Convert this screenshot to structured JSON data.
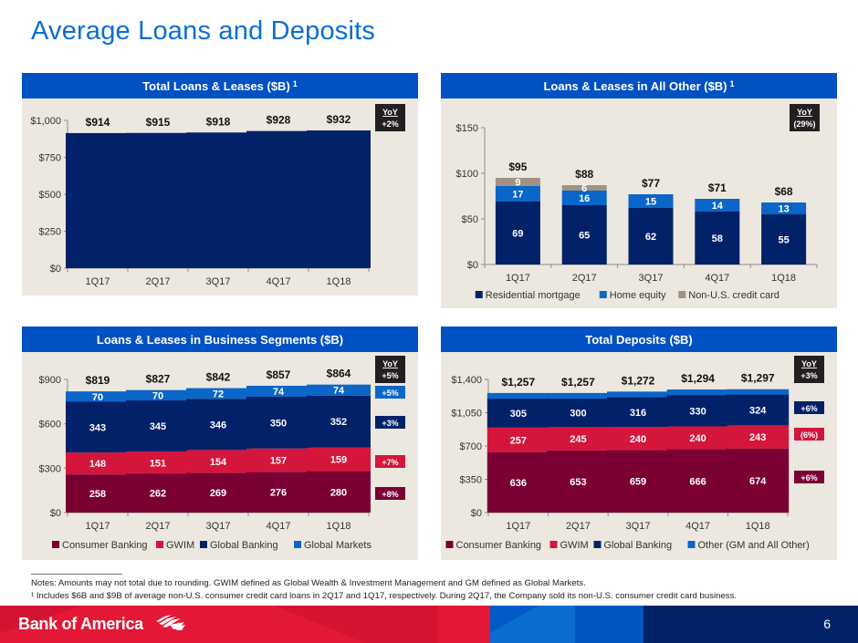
{
  "page": {
    "title": "Average Loans and Deposits",
    "page_number": "6",
    "brand": "Bank of America",
    "notes": [
      "Notes: Amounts may not total due to rounding. GWIM defined as Global Wealth & Investment Management and GM defined as Global Markets.",
      "¹ Includes $6B and $9B of average non-U.S. consumer credit card loans in 2Q17 and 1Q17, respectively. During 2Q17, the Company sold its non-U.S. consumer credit card business."
    ]
  },
  "colors": {
    "title_blue": "#0a6ed1",
    "header_blue": "#0051c3",
    "panel_bg": "#ece8df",
    "navy": "#012169",
    "light_blue": "#0a66c8",
    "taupe": "#a09385",
    "maroon": "#7a0033",
    "red": "#d4163c",
    "yoy_black": "#231f20",
    "footer_red": "#e31837"
  },
  "chart_data": [
    {
      "id": "total_loans",
      "type": "bar",
      "title": "Total Loans & Leases ($B)",
      "title_footnote": "1",
      "categories": [
        "1Q17",
        "2Q17",
        "3Q17",
        "4Q17",
        "1Q18"
      ],
      "series": [
        {
          "name": "Total Loans & Leases",
          "values": [
            914,
            915,
            918,
            928,
            932
          ],
          "color": "#012169"
        }
      ],
      "total_labels": [
        "$914",
        "$915",
        "$918",
        "$928",
        "$932"
      ],
      "ylim": [
        0,
        1000
      ],
      "yticks": [
        0,
        250,
        500,
        750,
        1000
      ],
      "ytick_labels": [
        "$0",
        "$250",
        "$500",
        "$750",
        "$1,000"
      ],
      "yoy": {
        "heading": "YoY",
        "value": "+2%"
      },
      "segment_yoy": [],
      "legend": [],
      "xlabel": "",
      "ylabel": ""
    },
    {
      "id": "all_other",
      "type": "bar",
      "stacked": true,
      "title": "Loans & Leases in All Other ($B)",
      "title_footnote": "1",
      "categories": [
        "1Q17",
        "2Q17",
        "3Q17",
        "4Q17",
        "1Q18"
      ],
      "series": [
        {
          "name": "Residential mortgage",
          "values": [
            69,
            65,
            62,
            58,
            55
          ],
          "labels": [
            "69",
            "65",
            "62",
            "58",
            "55"
          ],
          "color": "#012169"
        },
        {
          "name": "Home equity",
          "values": [
            17,
            16,
            15,
            14,
            13
          ],
          "labels": [
            "17",
            "16",
            "15",
            "14",
            "13"
          ],
          "color": "#0a66c8"
        },
        {
          "name": "Non-U.S. credit card",
          "values": [
            9,
            6,
            0,
            0,
            0
          ],
          "labels": [
            "9",
            "6",
            "",
            "",
            ""
          ],
          "color": "#a09385"
        }
      ],
      "total_labels": [
        "$95",
        "$88",
        "$77",
        "$71",
        "$68"
      ],
      "ylim": [
        0,
        150
      ],
      "yticks": [
        0,
        50,
        100,
        150
      ],
      "ytick_labels": [
        "$0",
        "$50",
        "$100",
        "$150"
      ],
      "yoy": {
        "heading": "YoY",
        "value": "(29%)"
      },
      "segment_yoy": [],
      "legend": [
        "Residential mortgage",
        "Home equity",
        "Non-U.S. credit card"
      ],
      "legend_placement": "bottom",
      "xlabel": "",
      "ylabel": ""
    },
    {
      "id": "business_segments",
      "type": "bar",
      "stacked": true,
      "title": "Loans & Leases in Business Segments ($B)",
      "title_footnote": "",
      "categories": [
        "1Q17",
        "2Q17",
        "3Q17",
        "4Q17",
        "1Q18"
      ],
      "series": [
        {
          "name": "Consumer Banking",
          "values": [
            258,
            262,
            269,
            276,
            280
          ],
          "labels": [
            "258",
            "262",
            "269",
            "276",
            "280"
          ],
          "color": "#7a0033"
        },
        {
          "name": "GWIM",
          "values": [
            148,
            151,
            154,
            157,
            159
          ],
          "labels": [
            "148",
            "151",
            "154",
            "157",
            "159"
          ],
          "color": "#d4163c"
        },
        {
          "name": "Global Banking",
          "values": [
            343,
            345,
            346,
            350,
            352
          ],
          "labels": [
            "343",
            "345",
            "346",
            "350",
            "352"
          ],
          "color": "#012169"
        },
        {
          "name": "Global Markets",
          "values": [
            70,
            70,
            72,
            74,
            74
          ],
          "labels": [
            "70",
            "70",
            "72",
            "74",
            "74"
          ],
          "color": "#0a66c8"
        }
      ],
      "total_labels": [
        "$819",
        "$827",
        "$842",
        "$857",
        "$864"
      ],
      "ylim": [
        0,
        900
      ],
      "yticks": [
        0,
        300,
        600,
        900
      ],
      "ytick_labels": [
        "$0",
        "$300",
        "$600",
        "$900"
      ],
      "yoy": {
        "heading": "YoY",
        "value": "+5%"
      },
      "segment_yoy": [
        {
          "series": "Global Markets",
          "value": "+5%",
          "color": "#0a66c8"
        },
        {
          "series": "Global Banking",
          "value": "+3%",
          "color": "#012169"
        },
        {
          "series": "GWIM",
          "value": "+7%",
          "color": "#d4163c"
        },
        {
          "series": "Consumer Banking",
          "value": "+8%",
          "color": "#7a0033"
        }
      ],
      "legend": [
        "Consumer Banking",
        "GWIM",
        "Global Banking",
        "Global Markets"
      ],
      "legend_placement": "bottom",
      "xlabel": "",
      "ylabel": ""
    },
    {
      "id": "total_deposits",
      "type": "bar",
      "stacked": true,
      "title": "Total Deposits ($B)",
      "title_footnote": "",
      "categories": [
        "1Q17",
        "2Q17",
        "3Q17",
        "4Q17",
        "1Q18"
      ],
      "series": [
        {
          "name": "Consumer Banking",
          "values": [
            636,
            653,
            659,
            666,
            674
          ],
          "labels": [
            "636",
            "653",
            "659",
            "666",
            "674"
          ],
          "color": "#7a0033"
        },
        {
          "name": "GWIM",
          "values": [
            257,
            245,
            240,
            240,
            243
          ],
          "labels": [
            "257",
            "245",
            "240",
            "240",
            "243"
          ],
          "color": "#d4163c"
        },
        {
          "name": "Global Banking",
          "values": [
            305,
            300,
            316,
            330,
            324
          ],
          "labels": [
            "305",
            "300",
            "316",
            "330",
            "324"
          ],
          "color": "#012169"
        },
        {
          "name": "Other (GM and All Other)",
          "values": [
            59,
            59,
            57,
            58,
            56
          ],
          "labels": [
            "",
            "",
            "",
            "",
            ""
          ],
          "color": "#0a66c8"
        }
      ],
      "total_labels": [
        "$1,257",
        "$1,257",
        "$1,272",
        "$1,294",
        "$1,297"
      ],
      "ylim": [
        0,
        1400
      ],
      "yticks": [
        0,
        350,
        700,
        1050,
        1400
      ],
      "ytick_labels": [
        "$0",
        "$350",
        "$700",
        "$1,050",
        "$1,400"
      ],
      "yoy": {
        "heading": "YoY",
        "value": "+3%"
      },
      "segment_yoy": [
        {
          "series": "Global Banking",
          "value": "+6%",
          "color": "#012169"
        },
        {
          "series": "GWIM",
          "value": "(6%)",
          "color": "#d4163c"
        },
        {
          "series": "Consumer Banking",
          "value": "+6%",
          "color": "#7a0033"
        }
      ],
      "legend": [
        "Consumer Banking",
        "GWIM",
        "Global Banking",
        "Other (GM and All Other)"
      ],
      "legend_placement": "bottom",
      "xlabel": "",
      "ylabel": ""
    }
  ]
}
